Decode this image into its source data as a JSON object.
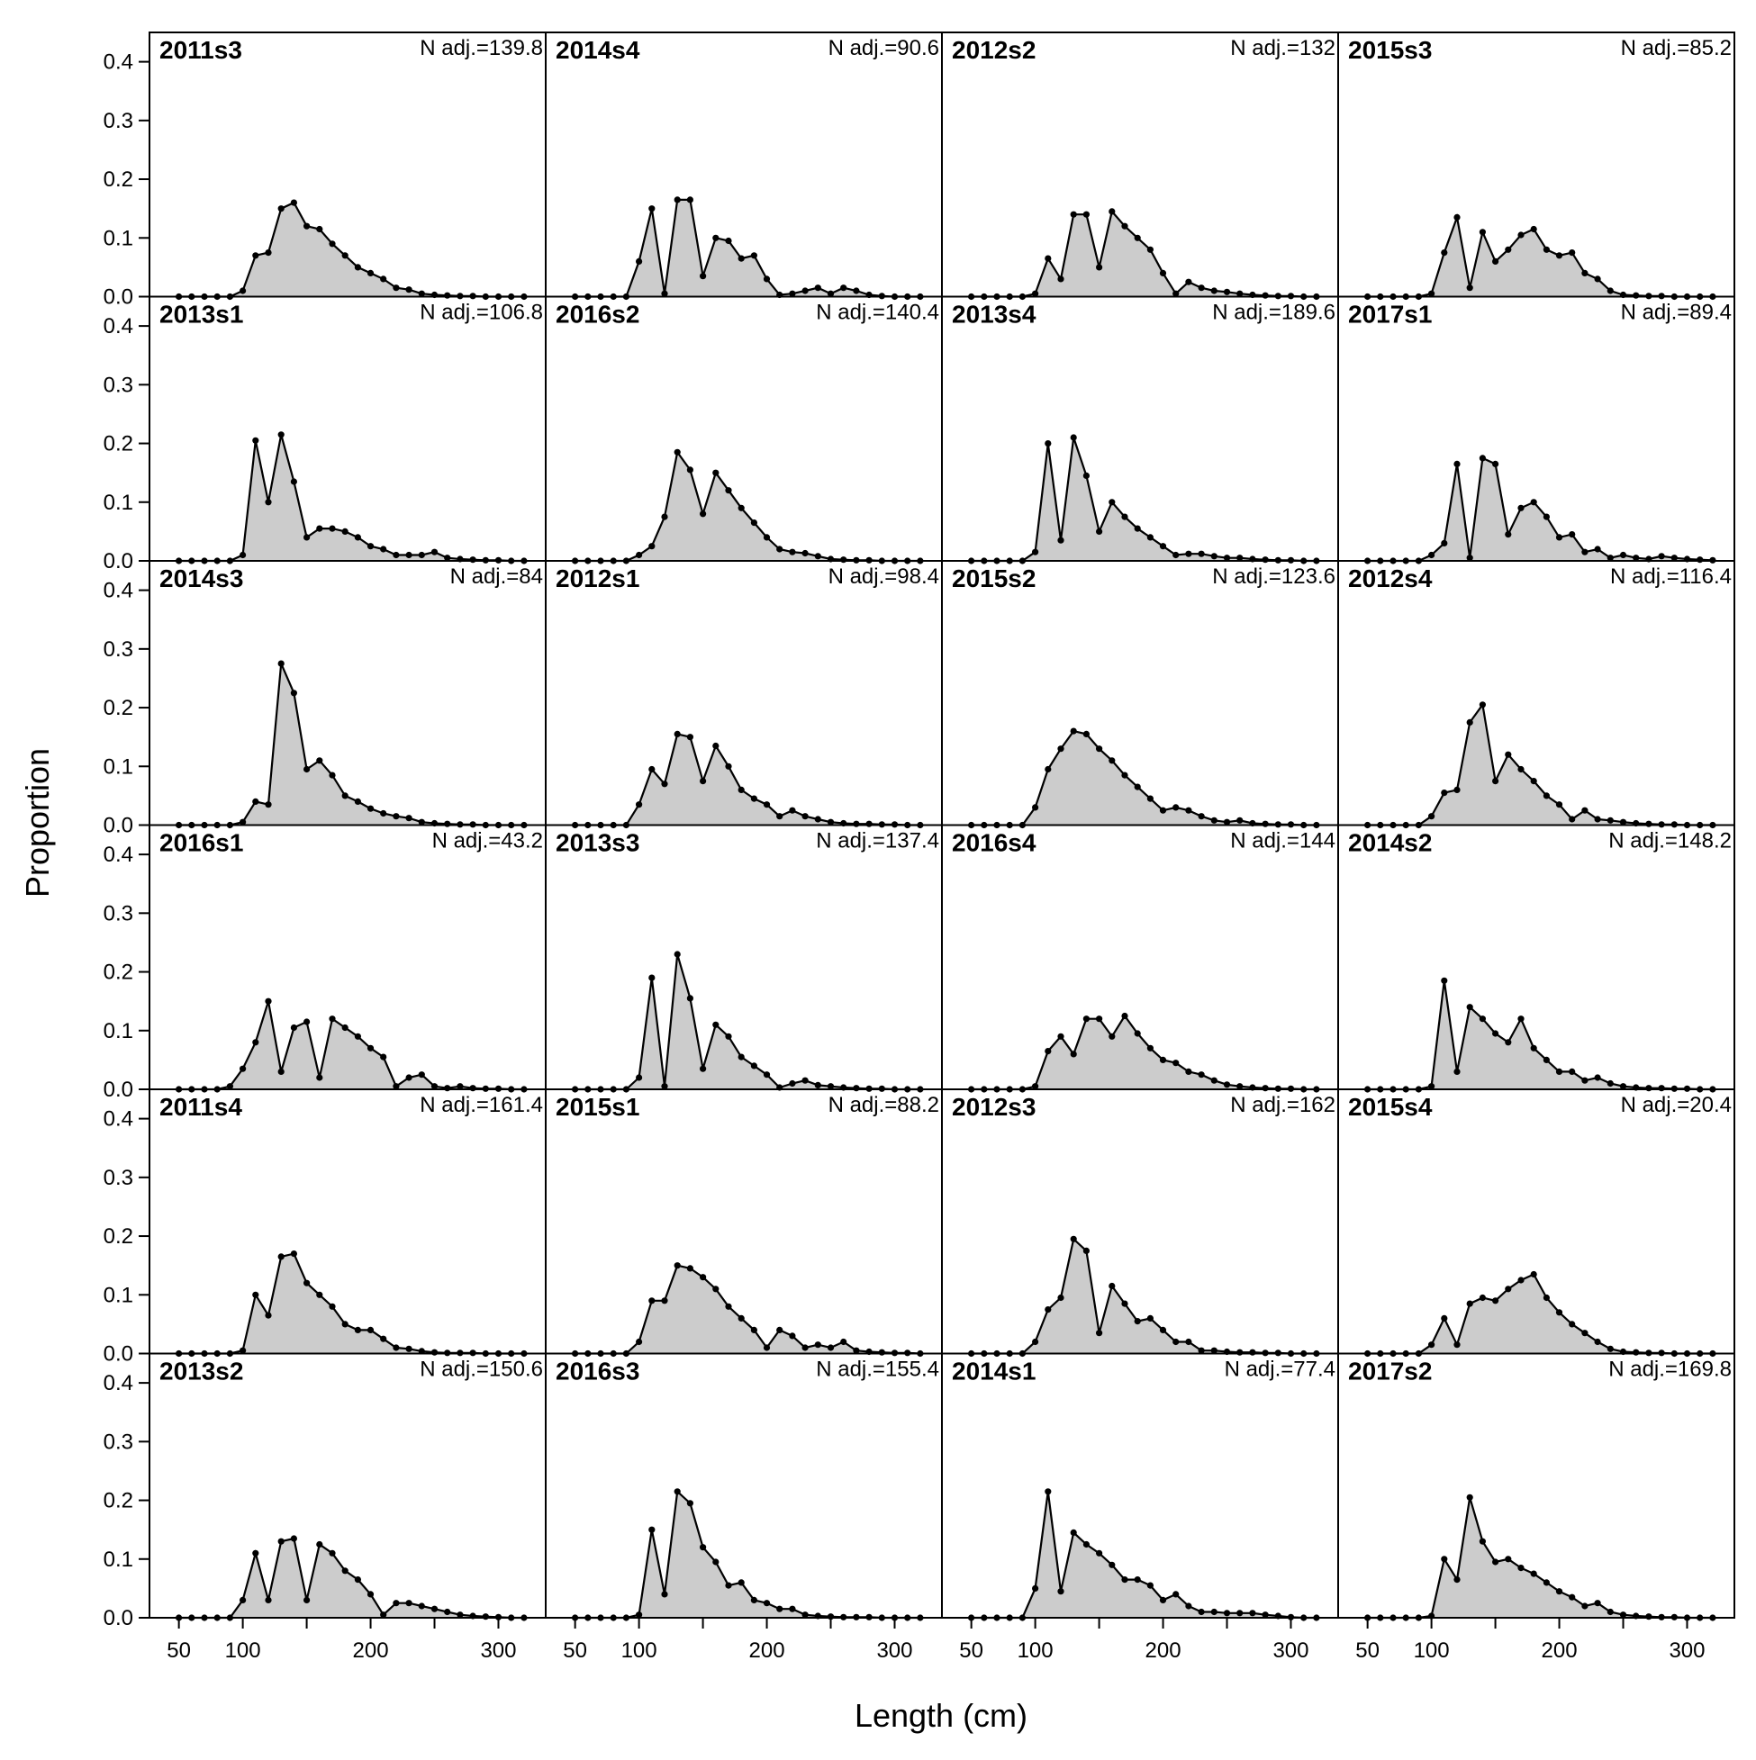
{
  "chart_data": {
    "type": "area",
    "xlabel": "Length (cm)",
    "ylabel": "Proportion",
    "xlim": [
      27,
      337
    ],
    "ylim": [
      0,
      0.45
    ],
    "x_ticks": [
      50,
      100,
      200,
      300
    ],
    "x_minor_ticks": [
      150,
      250
    ],
    "y_ticks": [
      0.0,
      0.1,
      0.2,
      0.3,
      0.4
    ],
    "y_tick_labels": [
      "0.0",
      "0.1",
      "0.2",
      "0.3",
      "0.4"
    ],
    "grid": false,
    "fill_color": "#cccccc",
    "line_color": "#000000",
    "x": [
      50,
      60,
      70,
      80,
      90,
      100,
      110,
      120,
      130,
      140,
      150,
      160,
      170,
      180,
      190,
      200,
      210,
      220,
      230,
      240,
      250,
      260,
      270,
      280,
      290,
      300,
      310,
      320
    ],
    "panels": [
      {
        "label": "2011s3",
        "n_adj": "N adj.=139.8",
        "values": [
          0,
          0,
          0,
          0,
          0,
          0.01,
          0.07,
          0.075,
          0.15,
          0.16,
          0.12,
          0.115,
          0.09,
          0.07,
          0.05,
          0.04,
          0.03,
          0.015,
          0.012,
          0.005,
          0.003,
          0.002,
          0.001,
          0.001,
          0,
          0,
          0,
          0
        ]
      },
      {
        "label": "2013s1",
        "n_adj": "N adj.=106.8",
        "values": [
          0,
          0,
          0,
          0,
          0,
          0.01,
          0.205,
          0.1,
          0.215,
          0.135,
          0.04,
          0.055,
          0.055,
          0.05,
          0.04,
          0.025,
          0.02,
          0.01,
          0.01,
          0.01,
          0.015,
          0.005,
          0.003,
          0.002,
          0.001,
          0.001,
          0,
          0
        ]
      },
      {
        "label": "2014s3",
        "n_adj": "N adj.=84",
        "values": [
          0,
          0,
          0,
          0,
          0,
          0.005,
          0.04,
          0.035,
          0.275,
          0.225,
          0.095,
          0.11,
          0.085,
          0.05,
          0.04,
          0.028,
          0.02,
          0.015,
          0.012,
          0.005,
          0.003,
          0.002,
          0.001,
          0.001,
          0,
          0,
          0,
          0
        ]
      },
      {
        "label": "2016s1",
        "n_adj": "N adj.=43.2",
        "values": [
          0,
          0,
          0,
          0,
          0.005,
          0.035,
          0.08,
          0.15,
          0.03,
          0.105,
          0.115,
          0.02,
          0.12,
          0.105,
          0.09,
          0.07,
          0.055,
          0.005,
          0.02,
          0.025,
          0.005,
          0.002,
          0.005,
          0.002,
          0.001,
          0.001,
          0,
          0
        ]
      },
      {
        "label": "2011s4",
        "n_adj": "N adj.=161.4",
        "values": [
          0,
          0,
          0,
          0,
          0,
          0.005,
          0.1,
          0.065,
          0.165,
          0.17,
          0.12,
          0.1,
          0.08,
          0.05,
          0.04,
          0.04,
          0.025,
          0.01,
          0.008,
          0.004,
          0.002,
          0.001,
          0.001,
          0.001,
          0,
          0,
          0,
          0
        ]
      },
      {
        "label": "2013s2",
        "n_adj": "N adj.=150.6",
        "values": [
          0,
          0,
          0,
          0,
          0,
          0.03,
          0.11,
          0.03,
          0.13,
          0.135,
          0.03,
          0.125,
          0.11,
          0.08,
          0.065,
          0.04,
          0.005,
          0.025,
          0.025,
          0.02,
          0.015,
          0.01,
          0.005,
          0.003,
          0.002,
          0.001,
          0,
          0
        ]
      },
      {
        "label": "2014s4",
        "n_adj": "N adj.=90.6",
        "values": [
          0,
          0,
          0,
          0,
          0,
          0.06,
          0.15,
          0.005,
          0.165,
          0.165,
          0.035,
          0.1,
          0.095,
          0.065,
          0.07,
          0.03,
          0.003,
          0.005,
          0.01,
          0.015,
          0.005,
          0.015,
          0.01,
          0.003,
          0.001,
          0,
          0,
          0
        ]
      },
      {
        "label": "2016s2",
        "n_adj": "N adj.=140.4",
        "values": [
          0,
          0,
          0,
          0,
          0,
          0.01,
          0.025,
          0.075,
          0.185,
          0.155,
          0.08,
          0.15,
          0.12,
          0.09,
          0.065,
          0.04,
          0.02,
          0.015,
          0.013,
          0.008,
          0.003,
          0.002,
          0.001,
          0.001,
          0,
          0,
          0,
          0
        ]
      },
      {
        "label": "2012s1",
        "n_adj": "N adj.=98.4",
        "values": [
          0,
          0,
          0,
          0,
          0,
          0.035,
          0.095,
          0.07,
          0.155,
          0.15,
          0.075,
          0.135,
          0.1,
          0.06,
          0.045,
          0.035,
          0.015,
          0.025,
          0.015,
          0.01,
          0.005,
          0.003,
          0.002,
          0.002,
          0.001,
          0.001,
          0,
          0
        ]
      },
      {
        "label": "2013s3",
        "n_adj": "N adj.=137.4",
        "values": [
          0,
          0,
          0,
          0,
          0,
          0.02,
          0.19,
          0.005,
          0.23,
          0.155,
          0.035,
          0.11,
          0.09,
          0.055,
          0.04,
          0.025,
          0.003,
          0.01,
          0.015,
          0.007,
          0.005,
          0.003,
          0.002,
          0.001,
          0.001,
          0,
          0,
          0
        ]
      },
      {
        "label": "2015s1",
        "n_adj": "N adj.=88.2",
        "values": [
          0,
          0,
          0,
          0,
          0,
          0.02,
          0.09,
          0.09,
          0.15,
          0.145,
          0.13,
          0.11,
          0.08,
          0.06,
          0.04,
          0.01,
          0.04,
          0.03,
          0.01,
          0.015,
          0.01,
          0.02,
          0.005,
          0.003,
          0.002,
          0.001,
          0.001,
          0
        ]
      },
      {
        "label": "2016s3",
        "n_adj": "N adj.=155.4",
        "values": [
          0,
          0,
          0,
          0,
          0,
          0.005,
          0.15,
          0.04,
          0.215,
          0.195,
          0.12,
          0.095,
          0.055,
          0.06,
          0.03,
          0.025,
          0.015,
          0.015,
          0.005,
          0.003,
          0.002,
          0.001,
          0.001,
          0.001,
          0,
          0,
          0,
          0
        ]
      },
      {
        "label": "2012s2",
        "n_adj": "N adj.=132",
        "values": [
          0,
          0,
          0,
          0,
          0,
          0.005,
          0.065,
          0.03,
          0.14,
          0.14,
          0.05,
          0.145,
          0.12,
          0.1,
          0.08,
          0.04,
          0.005,
          0.025,
          0.015,
          0.01,
          0.008,
          0.005,
          0.003,
          0.002,
          0.001,
          0.001,
          0,
          0
        ]
      },
      {
        "label": "2013s4",
        "n_adj": "N adj.=189.6",
        "values": [
          0,
          0,
          0,
          0,
          0,
          0.015,
          0.2,
          0.035,
          0.21,
          0.145,
          0.05,
          0.1,
          0.075,
          0.055,
          0.04,
          0.025,
          0.01,
          0.012,
          0.012,
          0.008,
          0.005,
          0.005,
          0.003,
          0.002,
          0.001,
          0.001,
          0,
          0
        ]
      },
      {
        "label": "2015s2",
        "n_adj": "N adj.=123.6",
        "values": [
          0,
          0,
          0,
          0,
          0,
          0.03,
          0.095,
          0.13,
          0.16,
          0.155,
          0.13,
          0.11,
          0.085,
          0.065,
          0.045,
          0.025,
          0.03,
          0.025,
          0.015,
          0.008,
          0.005,
          0.008,
          0.003,
          0.002,
          0.001,
          0.001,
          0,
          0
        ]
      },
      {
        "label": "2016s4",
        "n_adj": "N adj.=144",
        "values": [
          0,
          0,
          0,
          0,
          0,
          0.005,
          0.065,
          0.09,
          0.06,
          0.12,
          0.12,
          0.09,
          0.125,
          0.095,
          0.07,
          0.05,
          0.045,
          0.03,
          0.025,
          0.015,
          0.008,
          0.005,
          0.003,
          0.002,
          0.001,
          0.001,
          0,
          0
        ]
      },
      {
        "label": "2012s3",
        "n_adj": "N adj.=162",
        "values": [
          0,
          0,
          0,
          0,
          0,
          0.02,
          0.075,
          0.095,
          0.195,
          0.175,
          0.035,
          0.115,
          0.085,
          0.055,
          0.06,
          0.04,
          0.02,
          0.02,
          0.005,
          0.005,
          0.003,
          0.002,
          0.002,
          0.001,
          0.001,
          0,
          0,
          0
        ]
      },
      {
        "label": "2014s1",
        "n_adj": "N adj.=77.4",
        "values": [
          0,
          0,
          0,
          0,
          0,
          0.05,
          0.215,
          0.045,
          0.145,
          0.125,
          0.11,
          0.09,
          0.065,
          0.065,
          0.055,
          0.03,
          0.04,
          0.02,
          0.01,
          0.01,
          0.008,
          0.008,
          0.008,
          0.005,
          0.003,
          0.001,
          0,
          0
        ]
      },
      {
        "label": "2015s3",
        "n_adj": "N adj.=85.2",
        "values": [
          0,
          0,
          0,
          0,
          0,
          0.005,
          0.075,
          0.135,
          0.015,
          0.11,
          0.06,
          0.08,
          0.105,
          0.115,
          0.08,
          0.07,
          0.075,
          0.04,
          0.03,
          0.01,
          0.003,
          0.002,
          0.001,
          0.001,
          0,
          0,
          0,
          0
        ]
      },
      {
        "label": "2017s1",
        "n_adj": "N adj.=89.4",
        "values": [
          0,
          0,
          0,
          0,
          0,
          0.01,
          0.03,
          0.165,
          0.005,
          0.175,
          0.165,
          0.045,
          0.09,
          0.1,
          0.075,
          0.04,
          0.045,
          0.015,
          0.02,
          0.005,
          0.01,
          0.005,
          0.003,
          0.008,
          0.005,
          0.003,
          0.002,
          0.001
        ]
      },
      {
        "label": "2012s4",
        "n_adj": "N adj.=116.4",
        "values": [
          0,
          0,
          0,
          0,
          0,
          0.015,
          0.055,
          0.06,
          0.175,
          0.205,
          0.075,
          0.12,
          0.095,
          0.075,
          0.05,
          0.035,
          0.01,
          0.025,
          0.01,
          0.008,
          0.005,
          0.003,
          0.002,
          0.001,
          0.001,
          0,
          0,
          0
        ]
      },
      {
        "label": "2014s2",
        "n_adj": "N adj.=148.2",
        "values": [
          0,
          0,
          0,
          0,
          0,
          0.005,
          0.185,
          0.03,
          0.14,
          0.12,
          0.095,
          0.08,
          0.12,
          0.07,
          0.05,
          0.03,
          0.03,
          0.015,
          0.02,
          0.01,
          0.005,
          0.003,
          0.002,
          0.002,
          0.001,
          0.001,
          0,
          0
        ]
      },
      {
        "label": "2015s4",
        "n_adj": "N adj.=20.4",
        "values": [
          0,
          0,
          0,
          0,
          0,
          0.015,
          0.06,
          0.015,
          0.085,
          0.095,
          0.09,
          0.11,
          0.125,
          0.135,
          0.095,
          0.07,
          0.05,
          0.035,
          0.02,
          0.008,
          0.003,
          0.002,
          0.001,
          0.001,
          0,
          0,
          0,
          0
        ]
      },
      {
        "label": "2017s2",
        "n_adj": "N adj.=169.8",
        "values": [
          0,
          0,
          0,
          0,
          0,
          0.003,
          0.1,
          0.065,
          0.205,
          0.13,
          0.095,
          0.1,
          0.085,
          0.075,
          0.06,
          0.045,
          0.035,
          0.02,
          0.025,
          0.01,
          0.005,
          0.003,
          0.002,
          0.001,
          0.001,
          0,
          0,
          0
        ]
      }
    ]
  }
}
